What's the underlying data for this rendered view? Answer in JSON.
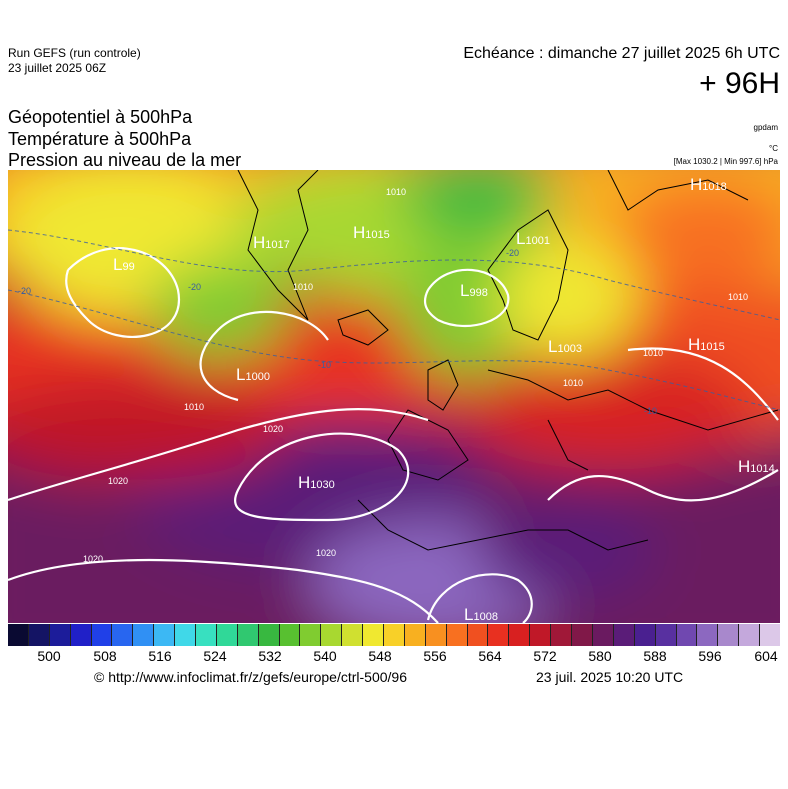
{
  "header": {
    "run_name": "Run GEFS (run controle)",
    "run_date": "23 juillet 2025 06Z",
    "valid_time": "Echéance : dimanche 27 juillet 2025 6h UTC",
    "lead_time": "+ 96H"
  },
  "variables": [
    "Géopotentiel à 500hPa",
    "Température à 500hPa",
    "Pression au niveau de la mer"
  ],
  "units": {
    "geopotential": "gpdam",
    "temperature": "°C",
    "pressure": "[Max 1030.2 | Min 997.6] hPa"
  },
  "map": {
    "pressure_centers": [
      {
        "kind": "H",
        "value": "1015",
        "place": "north Atlantic"
      },
      {
        "kind": "H",
        "value": "1018",
        "place": "northern Russia"
      },
      {
        "kind": "H",
        "value": "1015",
        "place": "western Russia"
      },
      {
        "kind": "H",
        "value": "1014",
        "place": "Black Sea"
      },
      {
        "kind": "H",
        "value": "1030",
        "place": "Azores"
      },
      {
        "kind": "L",
        "value": "998",
        "place": "Norwegian Sea"
      },
      {
        "kind": "L",
        "value": "1000",
        "place": "central Atlantic"
      },
      {
        "kind": "L",
        "value": "1008",
        "place": "Sahara"
      },
      {
        "kind": "L",
        "value": "1001",
        "place": "Scandinavia"
      },
      {
        "kind": "H",
        "value": "1017",
        "place": "Greenland"
      },
      {
        "kind": "L",
        "value": "99",
        "place": "Labrador Sea"
      },
      {
        "kind": "L",
        "value": "1003",
        "place": "Baltic"
      }
    ],
    "isobar_labels": [
      "1010",
      "1010",
      "1010",
      "1010",
      "1010",
      "1020",
      "1020",
      "1020",
      "1020",
      "1010"
    ],
    "isotherm_labels": [
      "-20",
      "-20",
      "-20",
      "-10",
      "-10"
    ],
    "land_color": "#000000",
    "isobar_color": "#ffffff"
  },
  "colorbar": {
    "colors": [
      "#0a0a32",
      "#141464",
      "#1c1c9a",
      "#2020c8",
      "#2040e8",
      "#2866f0",
      "#3090f4",
      "#3cb8f4",
      "#40d8e8",
      "#38e0c0",
      "#30d898",
      "#30c870",
      "#38b840",
      "#58c030",
      "#80cc30",
      "#a8d830",
      "#d0e030",
      "#f0e830",
      "#f8d028",
      "#f8b020",
      "#f89020",
      "#f87020",
      "#f05020",
      "#e83020",
      "#d82020",
      "#c01828",
      "#a01838",
      "#801848",
      "#6a1a60",
      "#5a1c78",
      "#4a2090",
      "#5830a0",
      "#7048b0",
      "#8c68c0",
      "#a888cc",
      "#c4a8dc",
      "#dcc8e8"
    ],
    "tick_labels": [
      "500",
      "508",
      "516",
      "524",
      "532",
      "540",
      "548",
      "556",
      "564",
      "572",
      "580",
      "588",
      "596",
      "604"
    ]
  },
  "footer": {
    "credit": "© http://www.infoclimat.fr/z/gefs/europe/ctrl-500/96",
    "generated": "23 juil. 2025 10:20 UTC"
  }
}
